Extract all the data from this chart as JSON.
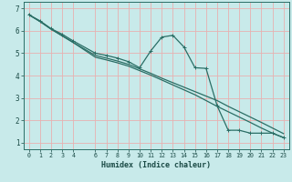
{
  "title": "",
  "xlabel": "Humidex (Indice chaleur)",
  "bg_color": "#c8eaea",
  "grid_color": "#e8b0b0",
  "line_color": "#2a6e65",
  "xlim": [
    -0.5,
    23.5
  ],
  "ylim": [
    0.7,
    7.3
  ],
  "xticks": [
    0,
    1,
    2,
    3,
    4,
    6,
    7,
    8,
    9,
    10,
    11,
    12,
    13,
    14,
    15,
    16,
    17,
    18,
    19,
    20,
    21,
    22,
    23
  ],
  "yticks": [
    1,
    2,
    3,
    4,
    5,
    6,
    7
  ],
  "line1_x": [
    0,
    1,
    2,
    3,
    4,
    6,
    7,
    8,
    9,
    10,
    11,
    12,
    13,
    14,
    15,
    16,
    17,
    18,
    19,
    20,
    21,
    22,
    23
  ],
  "line1_y": [
    6.72,
    6.45,
    6.1,
    5.85,
    5.55,
    5.0,
    4.9,
    4.78,
    4.62,
    4.35,
    5.1,
    5.72,
    5.8,
    5.28,
    4.35,
    4.32,
    2.65,
    1.55,
    1.55,
    1.42,
    1.42,
    1.42,
    1.22
  ],
  "line2_x": [
    0,
    1,
    2,
    3,
    4,
    6,
    7,
    8,
    9,
    10,
    11,
    12,
    13,
    14,
    15,
    16,
    17,
    18,
    19,
    20,
    21,
    22,
    23
  ],
  "line2_y": [
    6.72,
    6.42,
    6.08,
    5.78,
    5.48,
    4.9,
    4.78,
    4.65,
    4.5,
    4.3,
    4.1,
    3.88,
    3.68,
    3.48,
    3.28,
    3.08,
    2.88,
    2.62,
    2.38,
    2.14,
    1.9,
    1.65,
    1.4
  ],
  "line3_x": [
    0,
    1,
    2,
    3,
    4,
    6,
    7,
    8,
    9,
    10,
    11,
    12,
    13,
    14,
    15,
    16,
    17,
    18,
    19,
    20,
    21,
    22,
    23
  ],
  "line3_y": [
    6.72,
    6.42,
    6.08,
    5.78,
    5.48,
    4.82,
    4.7,
    4.57,
    4.42,
    4.22,
    4.02,
    3.8,
    3.58,
    3.36,
    3.14,
    2.88,
    2.62,
    2.38,
    2.14,
    1.9,
    1.65,
    1.42,
    1.22
  ]
}
